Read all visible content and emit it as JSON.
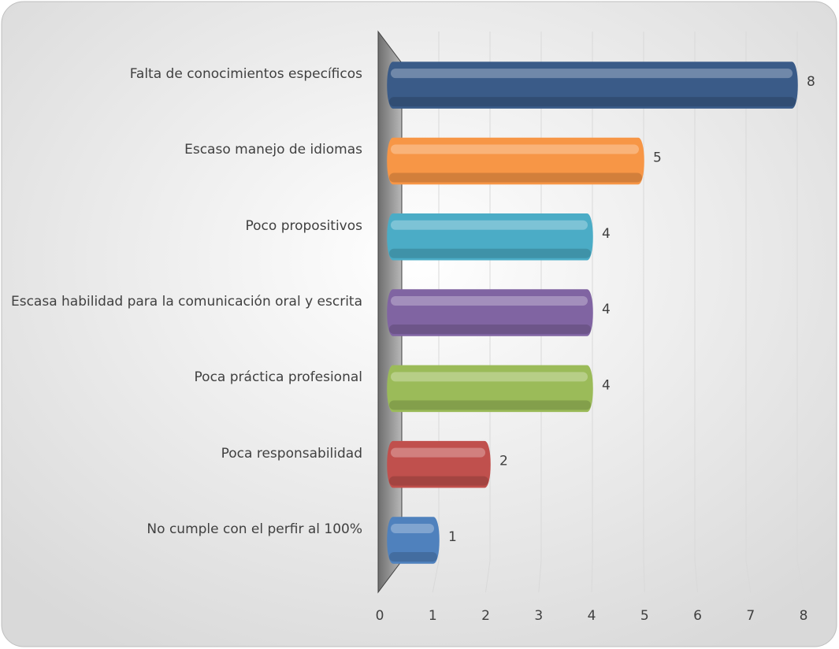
{
  "chart_data": {
    "type": "bar",
    "orientation": "horizontal",
    "categories": [
      "Falta de conocimientos específicos",
      "Escaso manejo de idiomas",
      "Poco propositivos",
      "Escasa habilidad para la comunicación oral y escrita",
      "Poca práctica profesional",
      "Poca responsabilidad",
      "No cumple con el perfir al 100%"
    ],
    "values": [
      8,
      5,
      4,
      4,
      4,
      2,
      1
    ],
    "colors": [
      "#3a5b88",
      "#f79646",
      "#4bacc6",
      "#8064a2",
      "#9bbb59",
      "#c0504d",
      "#4f81bd"
    ],
    "xlim": [
      0,
      8
    ],
    "xticks": [
      0,
      1,
      2,
      3,
      4,
      5,
      6,
      7,
      8
    ],
    "grid": true
  }
}
